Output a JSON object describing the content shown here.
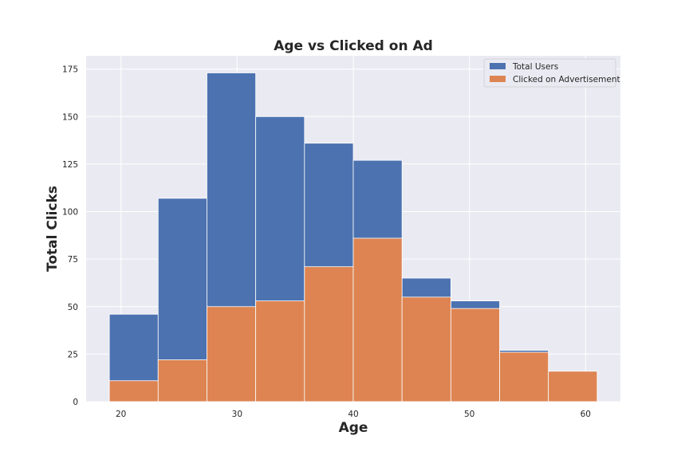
{
  "chart_data": {
    "type": "bar",
    "title": "Age vs Clicked on Ad",
    "xlabel": "Age",
    "ylabel": "Total Clicks",
    "xlim": [
      17,
      63
    ],
    "ylim": [
      0,
      182
    ],
    "xticks": [
      20,
      30,
      40,
      50,
      60
    ],
    "yticks": [
      0,
      25,
      50,
      75,
      100,
      125,
      150,
      175
    ],
    "bin_edges": [
      19,
      23.2,
      27.4,
      31.6,
      35.8,
      40,
      44.2,
      48.4,
      52.6,
      56.8,
      61
    ],
    "series": [
      {
        "name": "Total Users",
        "color": "#4c72b0",
        "values": [
          46,
          107,
          173,
          150,
          136,
          127,
          65,
          53,
          27,
          16
        ]
      },
      {
        "name": "Clicked on Advertisement",
        "color": "#dd8452",
        "values": [
          11,
          22,
          50,
          53,
          71,
          86,
          55,
          49,
          26,
          16
        ]
      }
    ],
    "grid": true,
    "legend_position": "top-right",
    "background": "#eaeaf2"
  }
}
